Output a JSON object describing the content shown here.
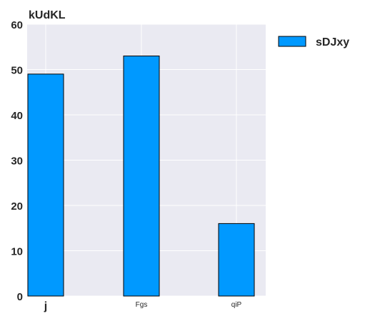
{
  "chart_data": {
    "type": "bar",
    "title": "kUdKL",
    "xlabel": "",
    "ylabel": "",
    "categories": [
      "j",
      "Fgs",
      "qiP"
    ],
    "series": [
      {
        "name": "sDJxy",
        "values": [
          49,
          53,
          16
        ]
      }
    ],
    "ylim": [
      0,
      60
    ],
    "yticks": [
      0,
      10,
      20,
      30,
      40,
      50,
      60
    ],
    "grid": true,
    "legend": "outside-top-right",
    "colors": {
      "bar": "#0099ff",
      "bar_edge": "#000000",
      "plot_bg": "#eaeaf2",
      "grid": "#ffffff",
      "text": "#262626"
    }
  }
}
